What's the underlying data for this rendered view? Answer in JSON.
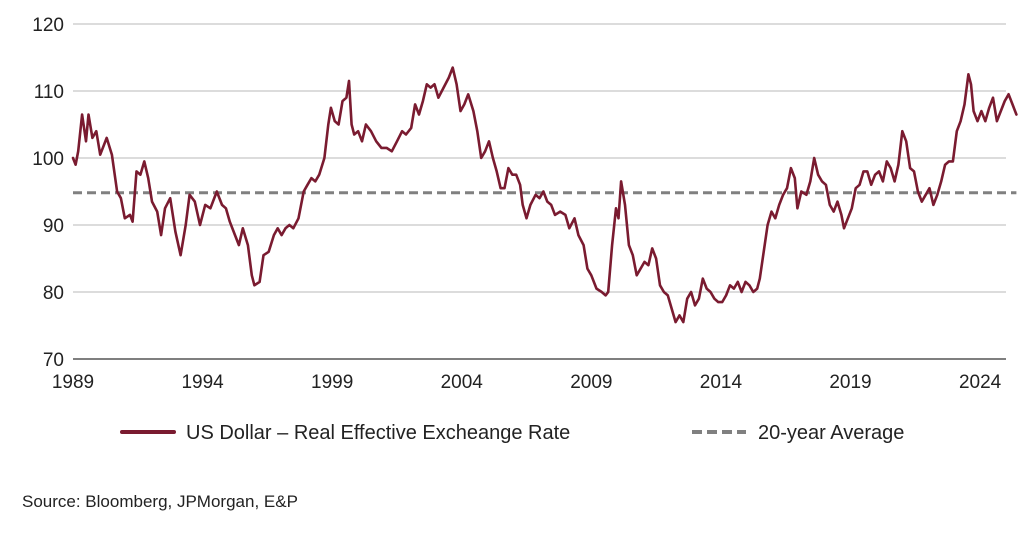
{
  "chart_data": {
    "type": "line",
    "title": "",
    "xlabel": "",
    "ylabel": "",
    "xlim": [
      1989,
      2025
    ],
    "ylim": [
      70,
      120
    ],
    "x_ticks": [
      "1989",
      "1994",
      "1999",
      "2004",
      "2009",
      "2014",
      "2019",
      "2024"
    ],
    "y_ticks": [
      "70",
      "80",
      "90",
      "100",
      "110",
      "120"
    ],
    "grid": "horizontal",
    "series": [
      {
        "name": "US Dollar – Real Effective Excheange Rate",
        "color": "#7a1b30",
        "style": "solid",
        "points": [
          [
            1989.0,
            100
          ],
          [
            1989.1,
            99
          ],
          [
            1989.2,
            101
          ],
          [
            1989.35,
            106.5
          ],
          [
            1989.5,
            102.5
          ],
          [
            1989.6,
            106.5
          ],
          [
            1989.75,
            103
          ],
          [
            1989.9,
            104
          ],
          [
            1990.05,
            100.5
          ],
          [
            1990.3,
            103
          ],
          [
            1990.5,
            100.5
          ],
          [
            1990.7,
            95
          ],
          [
            1990.85,
            94
          ],
          [
            1991.0,
            91
          ],
          [
            1991.2,
            91.5
          ],
          [
            1991.3,
            90.5
          ],
          [
            1991.45,
            98
          ],
          [
            1991.6,
            97.5
          ],
          [
            1991.75,
            99.5
          ],
          [
            1991.9,
            97
          ],
          [
            1992.05,
            93.5
          ],
          [
            1992.25,
            92
          ],
          [
            1992.4,
            88.5
          ],
          [
            1992.55,
            92.5
          ],
          [
            1992.75,
            94
          ],
          [
            1992.95,
            89
          ],
          [
            1993.15,
            85.5
          ],
          [
            1993.35,
            90
          ],
          [
            1993.5,
            94.5
          ],
          [
            1993.7,
            93.5
          ],
          [
            1993.9,
            90
          ],
          [
            1994.1,
            93
          ],
          [
            1994.3,
            92.5
          ],
          [
            1994.55,
            95
          ],
          [
            1994.75,
            93
          ],
          [
            1994.9,
            92.5
          ],
          [
            1995.05,
            90.5
          ],
          [
            1995.25,
            88.5
          ],
          [
            1995.4,
            87
          ],
          [
            1995.55,
            89.5
          ],
          [
            1995.75,
            87
          ],
          [
            1995.9,
            82.5
          ],
          [
            1996.0,
            81
          ],
          [
            1996.2,
            81.5
          ],
          [
            1996.35,
            85.5
          ],
          [
            1996.55,
            86
          ],
          [
            1996.75,
            88.5
          ],
          [
            1996.9,
            89.5
          ],
          [
            1997.05,
            88.5
          ],
          [
            1997.2,
            89.5
          ],
          [
            1997.35,
            90
          ],
          [
            1997.5,
            89.5
          ],
          [
            1997.7,
            91
          ],
          [
            1997.9,
            95
          ],
          [
            1998.05,
            96
          ],
          [
            1998.2,
            97
          ],
          [
            1998.35,
            96.5
          ],
          [
            1998.5,
            97.5
          ],
          [
            1998.7,
            100
          ],
          [
            1998.85,
            105
          ],
          [
            1998.95,
            107.5
          ],
          [
            1999.1,
            105.5
          ],
          [
            1999.25,
            105
          ],
          [
            1999.4,
            108.5
          ],
          [
            1999.55,
            109
          ],
          [
            1999.65,
            111.5
          ],
          [
            1999.75,
            105
          ],
          [
            1999.85,
            103.5
          ],
          [
            2000.0,
            104
          ],
          [
            2000.15,
            102.5
          ],
          [
            2000.3,
            105
          ],
          [
            2000.5,
            104
          ],
          [
            2000.7,
            102.5
          ],
          [
            2000.9,
            101.5
          ],
          [
            2001.1,
            101.5
          ],
          [
            2001.3,
            101
          ],
          [
            2001.5,
            102.5
          ],
          [
            2001.7,
            104
          ],
          [
            2001.85,
            103.5
          ],
          [
            2002.05,
            104.5
          ],
          [
            2002.2,
            108
          ],
          [
            2002.35,
            106.5
          ],
          [
            2002.5,
            108.5
          ],
          [
            2002.65,
            111
          ],
          [
            2002.8,
            110.5
          ],
          [
            2002.95,
            111
          ],
          [
            2003.1,
            109
          ],
          [
            2003.3,
            110.5
          ],
          [
            2003.5,
            112
          ],
          [
            2003.65,
            113.5
          ],
          [
            2003.8,
            111
          ],
          [
            2003.95,
            107
          ],
          [
            2004.1,
            108
          ],
          [
            2004.25,
            109.5
          ],
          [
            2004.45,
            107
          ],
          [
            2004.6,
            104
          ],
          [
            2004.75,
            100
          ],
          [
            2004.9,
            101
          ],
          [
            2005.05,
            102.5
          ],
          [
            2005.2,
            100
          ],
          [
            2005.35,
            98
          ],
          [
            2005.5,
            95.5
          ],
          [
            2005.65,
            95.5
          ],
          [
            2005.8,
            98.5
          ],
          [
            2005.95,
            97.5
          ],
          [
            2006.1,
            97.5
          ],
          [
            2006.25,
            96
          ],
          [
            2006.35,
            93
          ],
          [
            2006.5,
            91
          ],
          [
            2006.65,
            93
          ],
          [
            2006.85,
            94.5
          ],
          [
            2007.0,
            94
          ],
          [
            2007.15,
            95
          ],
          [
            2007.3,
            93.5
          ],
          [
            2007.45,
            93
          ],
          [
            2007.6,
            91.5
          ],
          [
            2007.8,
            92
          ],
          [
            2008.0,
            91.5
          ],
          [
            2008.15,
            89.5
          ],
          [
            2008.35,
            91
          ],
          [
            2008.5,
            88.5
          ],
          [
            2008.7,
            87
          ],
          [
            2008.85,
            83.5
          ],
          [
            2009.0,
            82.5
          ],
          [
            2009.2,
            80.5
          ],
          [
            2009.4,
            80
          ],
          [
            2009.55,
            79.5
          ],
          [
            2009.65,
            80
          ],
          [
            2009.8,
            87
          ],
          [
            2009.95,
            92.5
          ],
          [
            2010.05,
            91
          ],
          [
            2010.15,
            96.5
          ],
          [
            2010.3,
            93
          ],
          [
            2010.45,
            87
          ],
          [
            2010.6,
            85.5
          ],
          [
            2010.75,
            82.5
          ],
          [
            2010.9,
            83.5
          ],
          [
            2011.05,
            84.5
          ],
          [
            2011.2,
            84
          ],
          [
            2011.35,
            86.5
          ],
          [
            2011.5,
            85
          ],
          [
            2011.65,
            81
          ],
          [
            2011.8,
            80
          ],
          [
            2011.95,
            79.5
          ],
          [
            2012.1,
            77.5
          ],
          [
            2012.25,
            75.5
          ],
          [
            2012.4,
            76.5
          ],
          [
            2012.55,
            75.5
          ],
          [
            2012.7,
            79
          ],
          [
            2012.85,
            80
          ],
          [
            2013.0,
            78
          ],
          [
            2013.15,
            79
          ],
          [
            2013.3,
            82
          ],
          [
            2013.45,
            80.5
          ],
          [
            2013.6,
            80
          ],
          [
            2013.75,
            79
          ],
          [
            2013.9,
            78.5
          ],
          [
            2014.05,
            78.5
          ],
          [
            2014.2,
            79.5
          ],
          [
            2014.35,
            81
          ],
          [
            2014.5,
            80.5
          ],
          [
            2014.65,
            81.5
          ],
          [
            2014.8,
            80
          ],
          [
            2014.95,
            81.5
          ],
          [
            2015.1,
            81
          ],
          [
            2015.25,
            80
          ],
          [
            2015.4,
            80.5
          ],
          [
            2015.5,
            82
          ],
          [
            2015.65,
            86
          ],
          [
            2015.8,
            90
          ],
          [
            2015.95,
            92
          ],
          [
            2016.1,
            91
          ],
          [
            2016.25,
            93
          ],
          [
            2016.4,
            94.5
          ],
          [
            2016.55,
            95.5
          ],
          [
            2016.7,
            98.5
          ],
          [
            2016.85,
            97
          ],
          [
            2016.95,
            92.5
          ],
          [
            2017.1,
            95
          ],
          [
            2017.3,
            94.5
          ],
          [
            2017.45,
            96.5
          ],
          [
            2017.6,
            100
          ],
          [
            2017.75,
            97.5
          ],
          [
            2017.9,
            96.5
          ],
          [
            2018.05,
            96
          ],
          [
            2018.2,
            93
          ],
          [
            2018.35,
            92
          ],
          [
            2018.5,
            93.5
          ],
          [
            2018.65,
            91.5
          ],
          [
            2018.75,
            89.5
          ],
          [
            2018.9,
            91
          ],
          [
            2019.05,
            92.5
          ],
          [
            2019.2,
            95.5
          ],
          [
            2019.35,
            96
          ],
          [
            2019.5,
            98
          ],
          [
            2019.65,
            98
          ],
          [
            2019.8,
            96
          ],
          [
            2019.95,
            97.5
          ],
          [
            2020.1,
            98
          ],
          [
            2020.25,
            96.5
          ],
          [
            2020.4,
            99.5
          ],
          [
            2020.55,
            98.5
          ],
          [
            2020.7,
            96.5
          ],
          [
            2020.85,
            99
          ],
          [
            2021.0,
            104
          ],
          [
            2021.15,
            102.5
          ],
          [
            2021.3,
            98.5
          ],
          [
            2021.45,
            98
          ],
          [
            2021.6,
            95
          ],
          [
            2021.75,
            93.5
          ],
          [
            2021.9,
            94.5
          ],
          [
            2022.05,
            95.5
          ],
          [
            2022.2,
            93
          ],
          [
            2022.35,
            94.5
          ],
          [
            2022.5,
            96.5
          ],
          [
            2022.65,
            99
          ],
          [
            2022.8,
            99.5
          ],
          [
            2022.95,
            99.5
          ],
          [
            2023.1,
            104
          ],
          [
            2023.25,
            105.5
          ],
          [
            2023.4,
            108
          ],
          [
            2023.55,
            112.5
          ],
          [
            2023.65,
            111
          ],
          [
            2023.75,
            107
          ],
          [
            2023.9,
            105.5
          ],
          [
            2024.05,
            107
          ],
          [
            2024.2,
            105.5
          ],
          [
            2024.35,
            107.5
          ],
          [
            2024.5,
            109
          ],
          [
            2024.65,
            105.5
          ],
          [
            2024.8,
            107
          ],
          [
            2024.95,
            108.5
          ],
          [
            2025.1,
            109.5
          ],
          [
            2025.25,
            108
          ],
          [
            2025.4,
            106.5
          ]
        ]
      },
      {
        "name": "20-year Average",
        "color": "#808080",
        "style": "dashed",
        "points": [
          [
            1989.0,
            94.8
          ],
          [
            2025.4,
            94.8
          ]
        ]
      }
    ],
    "legend_position": "bottom"
  },
  "source": "Source: Bloomberg, JPMorgan, E&P"
}
